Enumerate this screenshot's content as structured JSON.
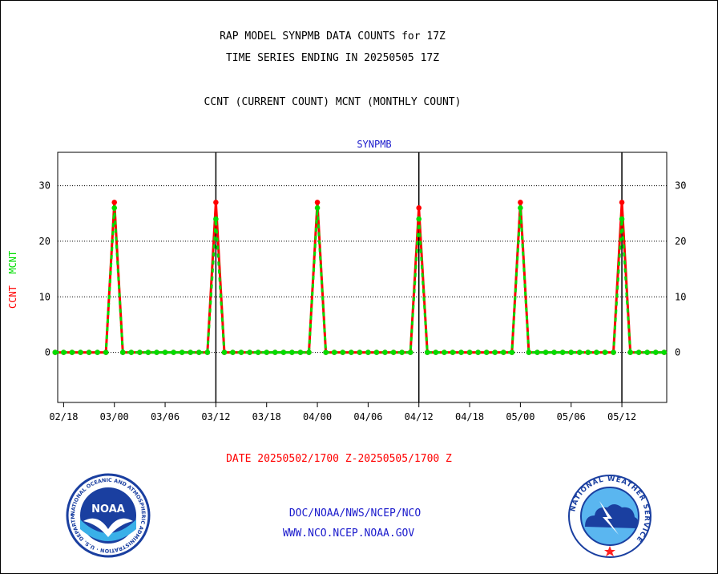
{
  "titles": {
    "line1": "RAP MODEL SYNPMB DATA COUNTS for 17Z",
    "line2": "TIME SERIES ENDING IN 20250505 17Z",
    "line3": "CCNT (CURRENT COUNT) MCNT (MONTHLY COUNT)"
  },
  "ylabel": {
    "ccnt": "CCNT",
    "mcnt": "MCNT"
  },
  "date_range": "DATE 20250502/1700 Z-20250505/1700 Z",
  "footer": {
    "line1": "DOC/NOAA/NWS/NCEP/NCO",
    "line2": "WWW.NCO.NCEP.NOAA.GOV"
  },
  "logos": {
    "noaa_center": "NOAA",
    "noaa_ring": "NATIONAL OCEANIC AND ATMOSPHERIC ADMINISTRATION · U.S. DEPARTMENT OF COMMERCE ·",
    "nws_ring": "NATIONAL WEATHER SERVICE"
  },
  "colors": {
    "ccnt": "#ff0000",
    "mcnt": "#00dd00",
    "title_blue": "#1a1acc"
  },
  "chart_data": {
    "type": "line",
    "title": "SYNPMB",
    "x_tick_labels": [
      "02/18",
      "03/00",
      "03/06",
      "03/12",
      "03/18",
      "04/00",
      "04/06",
      "04/12",
      "04/18",
      "05/00",
      "05/06",
      "05/12"
    ],
    "x_tick_positions": [
      -6,
      0,
      6,
      12,
      18,
      24,
      30,
      36,
      42,
      48,
      54,
      60
    ],
    "major_vlines": [
      12,
      36,
      60
    ],
    "y_ticks": [
      0,
      10,
      20,
      30
    ],
    "ylim": [
      -9,
      36
    ],
    "xlim": [
      -6.7,
      65.3
    ],
    "grid_y": true,
    "peaks": [
      {
        "x": 0,
        "ccnt": 27,
        "mcnt": 26
      },
      {
        "x": 12,
        "ccnt": 27,
        "mcnt": 24
      },
      {
        "x": 24,
        "ccnt": 27,
        "mcnt": 26
      },
      {
        "x": 36,
        "ccnt": 26,
        "mcnt": 24
      },
      {
        "x": 48,
        "ccnt": 27,
        "mcnt": 26
      },
      {
        "x": 60,
        "ccnt": 27,
        "mcnt": 24
      }
    ],
    "x_start": -7,
    "x_end": 65,
    "series": [
      {
        "name": "CCNT",
        "color": "#ff0000"
      },
      {
        "name": "MCNT",
        "color": "#00dd00"
      }
    ]
  }
}
